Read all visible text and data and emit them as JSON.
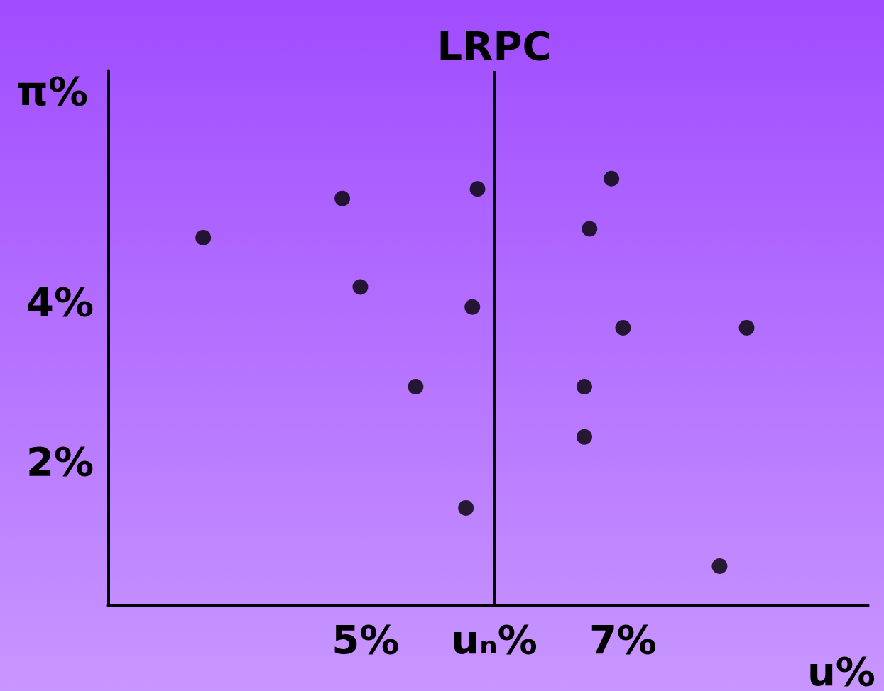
{
  "chart_data": {
    "type": "scatter",
    "xlabel": "u%",
    "ylabel": "π%",
    "x": [
      3.74,
      4.82,
      4.96,
      5.87,
      5.83,
      5.39,
      5.78,
      6.91,
      6.74,
      7.0,
      7.96,
      6.7,
      6.7,
      7.75
    ],
    "series": [
      {
        "color": "#000000",
        "values": [
          4.81,
          5.3,
          4.19,
          5.42,
          3.94,
          2.94,
          1.42,
          5.55,
          4.92,
          3.68,
          3.68,
          2.94,
          2.31,
          0.69
        ]
      }
    ],
    "xlim": [
      3.0,
      8.9
    ],
    "ylim": [
      0.2,
      6.9
    ],
    "xticks": [
      {
        "value": 5,
        "label": "5%"
      },
      {
        "value": 6,
        "label": "uₙ%"
      },
      {
        "value": 7,
        "label": "7%"
      }
    ],
    "yticks": [
      {
        "value": 2,
        "label": "2%"
      },
      {
        "value": 4,
        "label": "4%"
      }
    ],
    "ref_lines": [
      {
        "axis": "x",
        "value": 6,
        "label": "LRPC",
        "color": "#000000"
      }
    ],
    "grid": false,
    "marker": "circle"
  }
}
